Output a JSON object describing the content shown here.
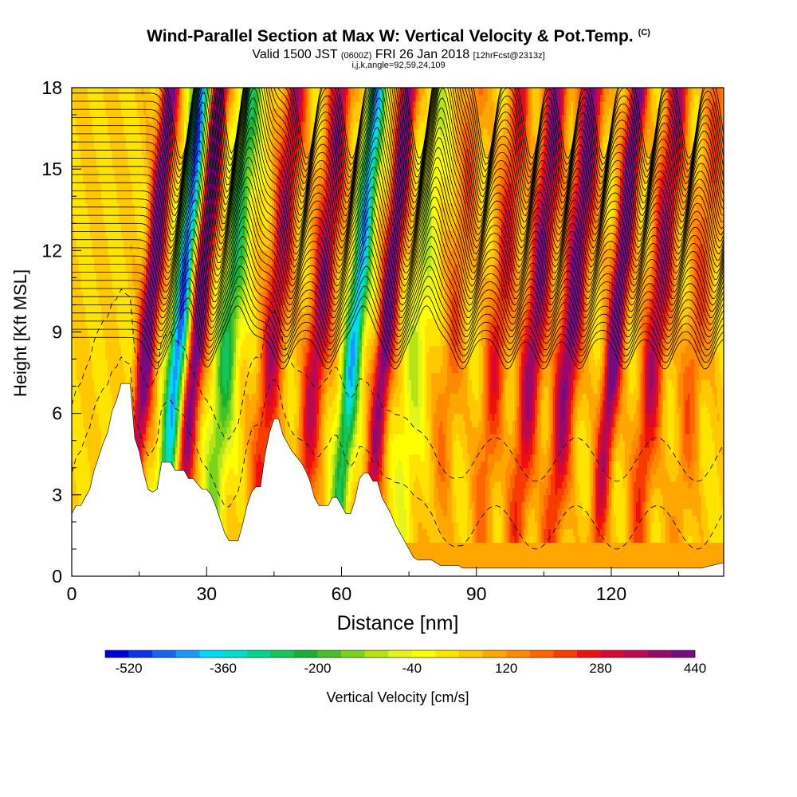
{
  "title": {
    "main": "Wind-Parallel Section at Max W: Vertical Velocity & Pot.Temp.",
    "copyright": "(C)",
    "valid_prefix": "Valid 1500 JST",
    "valid_utc": "(0600Z)",
    "valid_date": "FRI 26 Jan 2018",
    "forecast": "[12hrFcst@2313z]",
    "params": "i,j,k,angle=92,59,24,109"
  },
  "chart_data": {
    "type": "heatmap",
    "xlabel": "Distance [nm]",
    "ylabel": "Height [Kft MSL]",
    "xlim": [
      0,
      145
    ],
    "ylim": [
      0,
      18
    ],
    "xticks": [
      "0",
      "30",
      "60",
      "90",
      "120"
    ],
    "yticks": [
      "0",
      "3",
      "6",
      "9",
      "12",
      "15",
      "18"
    ],
    "colorbar": {
      "label": "Vertical Velocity [cm/s]",
      "tick_labels": [
        "-520",
        "-360",
        "-200",
        "-40",
        "120",
        "280",
        "440"
      ],
      "min": -560,
      "step": 40,
      "colors": [
        "#0000dd",
        "#0b33e8",
        "#1466f0",
        "#1a9af7",
        "#00d8ff",
        "#00e0c8",
        "#00d690",
        "#16c45a",
        "#18b032",
        "#46c02a",
        "#7ad41e",
        "#b4e414",
        "#e6f41e",
        "#ffff00",
        "#ffe400",
        "#ffc800",
        "#ffa600",
        "#ff8a00",
        "#ff6600",
        "#f83c00",
        "#ee1010",
        "#d60a30",
        "#b80a50",
        "#980a68",
        "#760a80"
      ]
    },
    "ridge_centers_nm": [
      17,
      24,
      28,
      35,
      45,
      55,
      63,
      70,
      77,
      85,
      95,
      103,
      111,
      121,
      130,
      139
    ],
    "ridge_values_cms": [
      440,
      -520,
      440,
      -280,
      300,
      330,
      -450,
      420,
      -120,
      140,
      230,
      360,
      400,
      440,
      320,
      160
    ],
    "terrain": {
      "x_nm": [
        0,
        1,
        2,
        3,
        4,
        5,
        6,
        7,
        8,
        9,
        10,
        11,
        12,
        13,
        14,
        15,
        16,
        17,
        18,
        19,
        20,
        21,
        22,
        23,
        24,
        25,
        26,
        27,
        28,
        29,
        30,
        31,
        32,
        33,
        34,
        35,
        36,
        37,
        38,
        39,
        40,
        41,
        42,
        43,
        44,
        45,
        46,
        47,
        48,
        49,
        50,
        51,
        52,
        53,
        54,
        55,
        56,
        57,
        58,
        59,
        60,
        61,
        62,
        63,
        64,
        65,
        66,
        67,
        68,
        69,
        70,
        71,
        72,
        73,
        74,
        75,
        76,
        77,
        78,
        79,
        80,
        81,
        82,
        83,
        84,
        85,
        86,
        87,
        88,
        90,
        95,
        100,
        110,
        120,
        130,
        140,
        145
      ],
      "height_kft": [
        2.3,
        2.6,
        2.6,
        2.9,
        3.2,
        3.9,
        4.4,
        4.9,
        5.3,
        6.1,
        6.5,
        7.1,
        7.1,
        7.1,
        5.1,
        4.6,
        3.8,
        3.2,
        3.1,
        3.2,
        4.2,
        4.2,
        4.2,
        3.9,
        3.9,
        3.9,
        3.6,
        3.6,
        3.4,
        3.2,
        3.2,
        3.0,
        2.6,
        2.1,
        1.6,
        1.3,
        1.3,
        1.3,
        1.9,
        2.6,
        3.1,
        3.3,
        3.3,
        4.5,
        5.3,
        5.8,
        5.8,
        5.2,
        4.9,
        4.6,
        4.4,
        4.2,
        3.9,
        3.5,
        2.9,
        2.6,
        2.6,
        2.6,
        2.9,
        2.9,
        2.6,
        2.3,
        2.3,
        2.8,
        3.6,
        3.8,
        3.8,
        3.5,
        3.5,
        2.9,
        2.6,
        2.3,
        1.9,
        1.6,
        1.3,
        1.0,
        0.7,
        0.6,
        0.6,
        0.6,
        0.6,
        0.5,
        0.4,
        0.4,
        0.4,
        0.4,
        0.4,
        0.3,
        0.3,
        0.3,
        0.3,
        0.3,
        0.3,
        0.3,
        0.3,
        0.3,
        0.5
      ]
    }
  }
}
